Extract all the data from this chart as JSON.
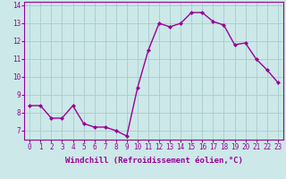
{
  "x": [
    0,
    1,
    2,
    3,
    4,
    5,
    6,
    7,
    8,
    9,
    10,
    11,
    12,
    13,
    14,
    15,
    16,
    17,
    18,
    19,
    20,
    21,
    22,
    23
  ],
  "y": [
    8.4,
    8.4,
    7.7,
    7.7,
    8.4,
    7.4,
    7.2,
    7.2,
    7.0,
    6.7,
    9.4,
    11.5,
    13.0,
    12.8,
    13.0,
    13.6,
    13.6,
    13.1,
    12.9,
    11.8,
    11.9,
    11.0,
    10.4,
    9.7
  ],
  "line_color": "#990099",
  "marker": "D",
  "marker_size": 2,
  "bg_color": "#cce8e8",
  "grid_color": "#aacccc",
  "xlabel": "Windchill (Refroidissement éolien,°C)",
  "xlabel_color": "#990099",
  "tick_color": "#990099",
  "ylim": [
    6.5,
    14.2
  ],
  "xlim": [
    -0.5,
    23.5
  ],
  "yticks": [
    7,
    8,
    9,
    10,
    11,
    12,
    13,
    14
  ],
  "xticks": [
    0,
    1,
    2,
    3,
    4,
    5,
    6,
    7,
    8,
    9,
    10,
    11,
    12,
    13,
    14,
    15,
    16,
    17,
    18,
    19,
    20,
    21,
    22,
    23
  ],
  "xtick_labels": [
    "0",
    "1",
    "2",
    "3",
    "4",
    "5",
    "6",
    "7",
    "8",
    "9",
    "10",
    "11",
    "12",
    "13",
    "14",
    "15",
    "16",
    "17",
    "18",
    "19",
    "20",
    "21",
    "22",
    "23"
  ],
  "tick_fontsize": 5.5,
  "xlabel_fontsize": 6.5,
  "linewidth": 1.0
}
